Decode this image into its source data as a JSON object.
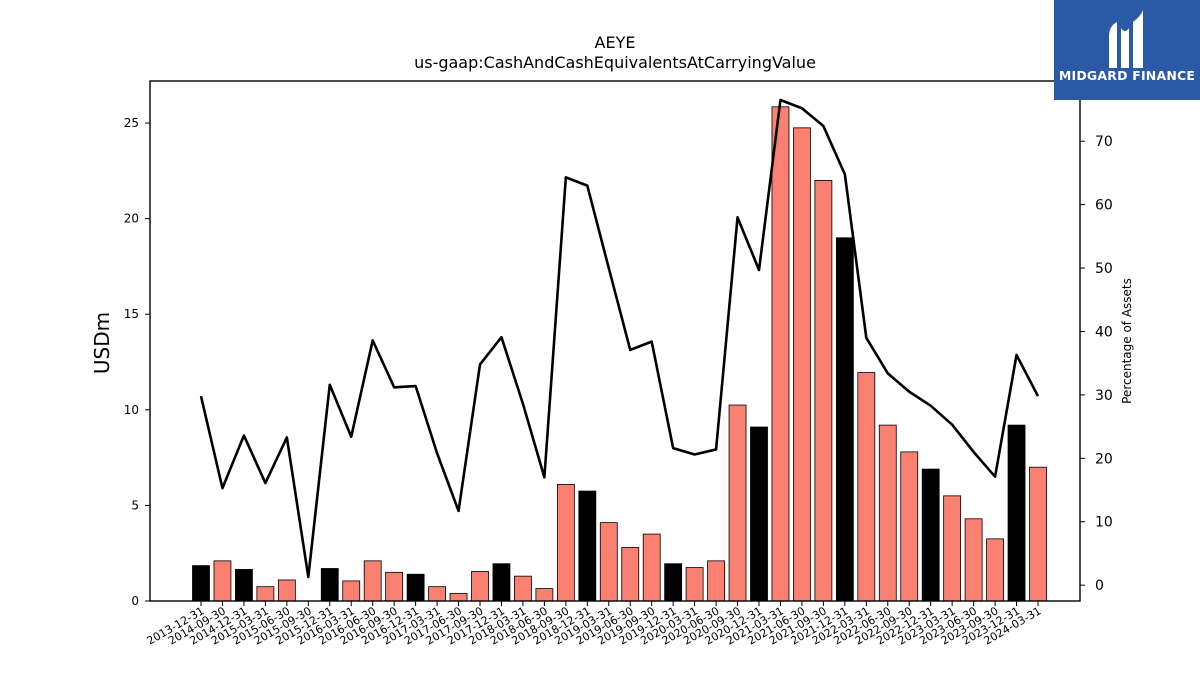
{
  "chart_data": {
    "type": "bar+line",
    "title": "AEYE",
    "subtitle": "us-gaap:CashAndCashEquivalentsAtCarryingValue",
    "ylabel": "USDm",
    "y2label": "Percentage of Assets",
    "ylim": [
      0,
      27.2
    ],
    "y2lim": [
      -2.5,
      79.5
    ],
    "yticks": [
      0,
      5,
      10,
      15,
      20,
      25
    ],
    "y2ticks": [
      0,
      10,
      20,
      30,
      40,
      50,
      60,
      70
    ],
    "categories": [
      "2013-12-31",
      "2014-09-30",
      "2014-12-31",
      "2015-03-31",
      "2015-06-30",
      "2015-09-30",
      "2015-12-31",
      "2016-03-31",
      "2016-06-30",
      "2016-09-30",
      "2016-12-31",
      "2017-03-31",
      "2017-06-30",
      "2017-09-30",
      "2017-12-31",
      "2018-03-31",
      "2018-06-30",
      "2018-09-30",
      "2018-12-31",
      "2019-03-31",
      "2019-06-30",
      "2019-09-30",
      "2019-12-31",
      "2020-03-31",
      "2020-06-30",
      "2020-09-30",
      "2020-12-31",
      "2021-03-31",
      "2021-06-30",
      "2021-09-30",
      "2021-12-31",
      "2022-03-31",
      "2022-06-30",
      "2022-09-30",
      "2022-12-31",
      "2023-03-31",
      "2023-06-30",
      "2023-09-30",
      "2023-12-31",
      "2024-03-31"
    ],
    "series": [
      {
        "type": "bar",
        "values": [
          1.85,
          2.1,
          1.65,
          0.75,
          1.1,
          0.0,
          1.7,
          1.05,
          2.1,
          1.5,
          1.4,
          0.75,
          0.4,
          1.55,
          1.95,
          1.3,
          0.65,
          6.1,
          5.75,
          4.1,
          2.8,
          3.5,
          1.95,
          1.75,
          2.1,
          10.25,
          9.1,
          25.85,
          24.75,
          22.0,
          19.0,
          11.95,
          9.2,
          7.8,
          6.9,
          5.5,
          4.3,
          3.25,
          9.2,
          7.0
        ],
        "bar_colors": [
          "#000000",
          "#fa8072",
          "#000000",
          "#fa8072",
          "#fa8072",
          "#fa8072",
          "#000000",
          "#fa8072",
          "#fa8072",
          "#fa8072",
          "#000000",
          "#fa8072",
          "#fa8072",
          "#fa8072",
          "#000000",
          "#fa8072",
          "#fa8072",
          "#fa8072",
          "#000000",
          "#fa8072",
          "#fa8072",
          "#fa8072",
          "#000000",
          "#fa8072",
          "#fa8072",
          "#fa8072",
          "#000000",
          "#fa8072",
          "#fa8072",
          "#fa8072",
          "#000000",
          "#fa8072",
          "#fa8072",
          "#fa8072",
          "#000000",
          "#fa8072",
          "#fa8072",
          "#fa8072",
          "#000000",
          "#fa8072"
        ]
      },
      {
        "type": "line",
        "axis": "secondary",
        "color": "#000000",
        "values": [
          29.8,
          15.3,
          23.6,
          16.1,
          23.3,
          1.3,
          31.6,
          23.4,
          38.6,
          31.2,
          31.4,
          20.8,
          11.7,
          34.8,
          39.1,
          28.6,
          17.0,
          64.3,
          63.0,
          50.0,
          37.1,
          38.4,
          21.6,
          20.6,
          21.4,
          58.0,
          49.7,
          76.5,
          75.2,
          72.4,
          64.8,
          39.0,
          33.4,
          30.5,
          28.3,
          25.3,
          21.0,
          17.1,
          36.3,
          29.8
        ]
      }
    ]
  },
  "logo": {
    "text": "MIDGARD FINANCE",
    "bg": "#2a5aa6"
  }
}
